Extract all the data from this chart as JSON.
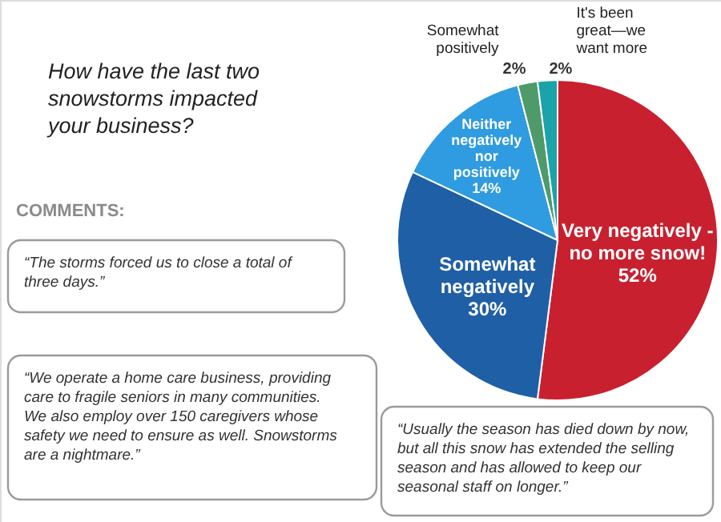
{
  "chart_data": {
    "type": "pie",
    "title": "How have the last two snowstorms impacted your business?",
    "categories": [
      "Very negatively - no more snow!",
      "Somewhat negatively",
      "Neither negatively nor positively",
      "Somewhat positively",
      "It's been great—we want more"
    ],
    "values": [
      52,
      30,
      14,
      2,
      2
    ],
    "value_labels": [
      "52%",
      "30%",
      "14%",
      "2%",
      "2%"
    ],
    "colors": [
      "#c8202f",
      "#1f5fa5",
      "#2f9be0",
      "#4f9a6a",
      "#1aa3a8"
    ],
    "annotations": [
      "COMMENTS:",
      "“The storms forced us to close a total of three days.”",
      "“We operate a home care business, providing care to fragile seniors in many communities. We also employ over 150 caregivers whose safety we need to ensure as well. Snowstorms are a nightmare.”",
      "“Usually the season has died down by now, but all this snow has extended the selling season and has allowed to keep our seasonal staff on longer.”"
    ]
  }
}
